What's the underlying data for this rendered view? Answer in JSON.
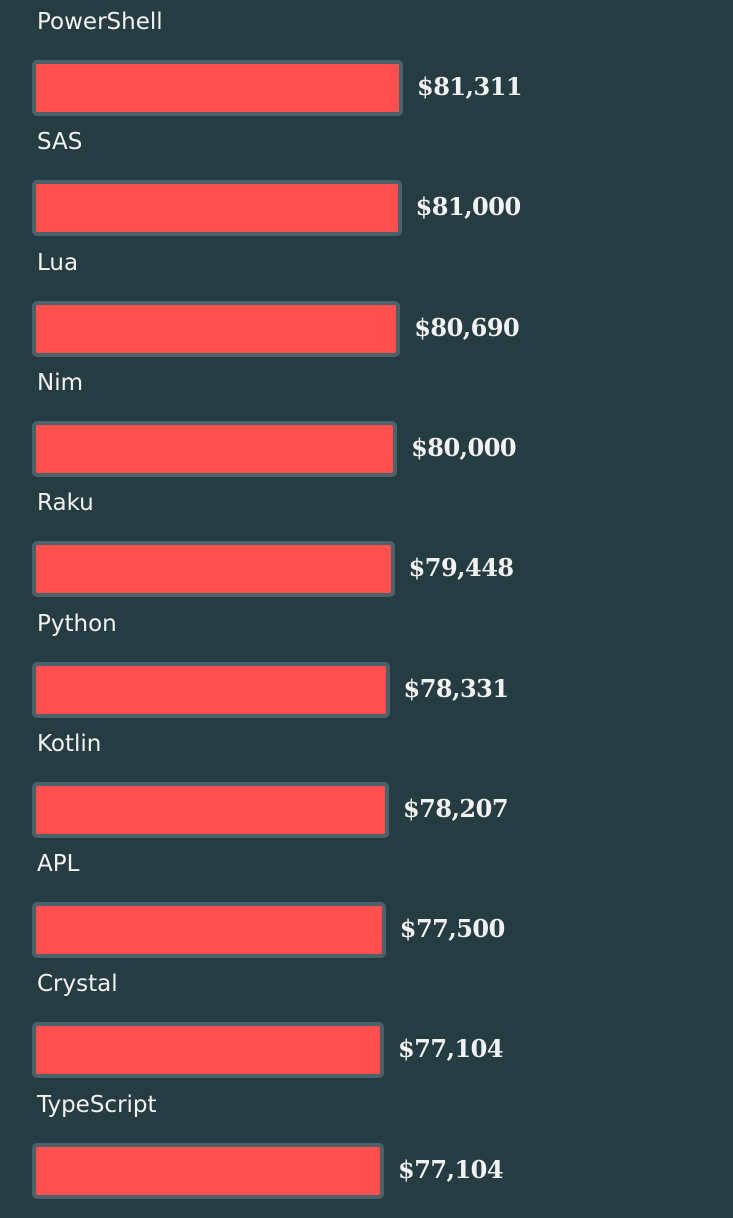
{
  "chart_data": {
    "type": "bar",
    "orientation": "horizontal",
    "title": "",
    "xlabel": "",
    "ylabel": "",
    "categories": [
      "PowerShell",
      "SAS",
      "Lua",
      "Nim",
      "Raku",
      "Python",
      "Kotlin",
      "APL",
      "Crystal",
      "TypeScript"
    ],
    "values": [
      81311,
      81000,
      80690,
      80000,
      79448,
      78331,
      78207,
      77500,
      77104,
      77104
    ],
    "value_labels": [
      "$81,311",
      "$81,000",
      "$80,690",
      "$80,000",
      "$79,448",
      "$78,331",
      "$78,207",
      "$77,500",
      "$77,104",
      "$77,104"
    ],
    "grid": false,
    "legend": "none"
  },
  "colors": {
    "background": "#263c43",
    "bar": "#ff5050",
    "bar_border": "#4d6168",
    "text": "#f2f2f2"
  }
}
